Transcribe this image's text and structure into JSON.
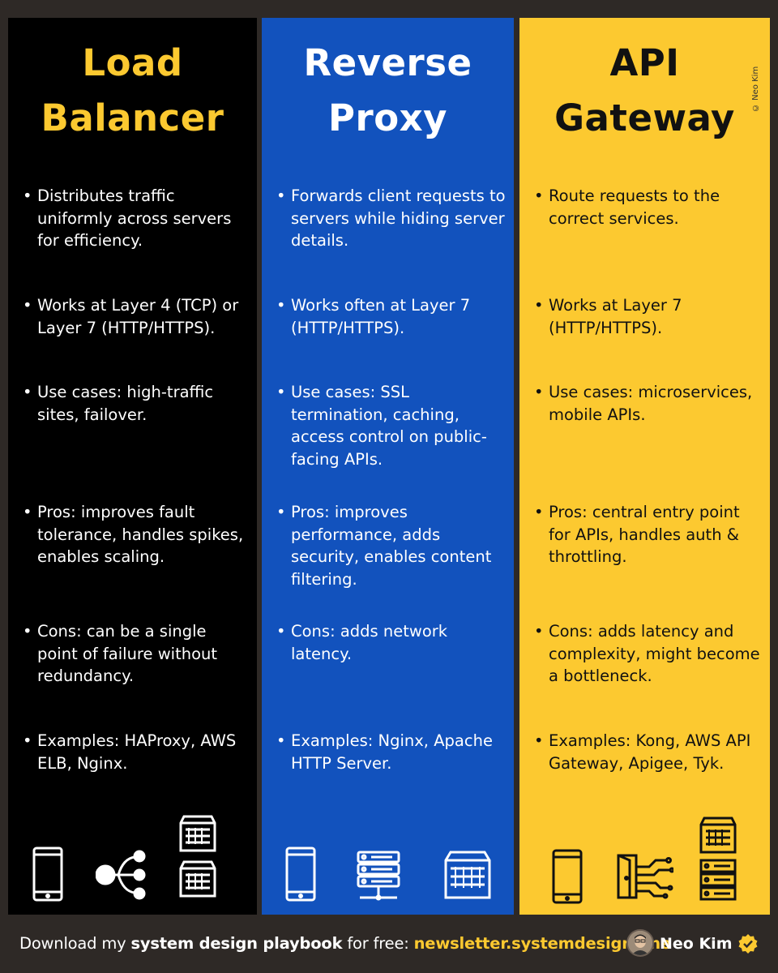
{
  "colors": {
    "background": "#2e2926",
    "load_balancer_bg": "#000000",
    "reverse_proxy_bg": "#1252bd",
    "api_gateway_bg": "#fcc930",
    "accent": "#fcc930"
  },
  "copyright": "© Neo Kim",
  "columns": {
    "load_balancer": {
      "title_line1": "Load",
      "title_line2": "Balancer",
      "bullets": [
        "Distributes traffic uniformly across servers for efficiency.",
        "Works at Layer 4 (TCP) or Layer 7 (HTTP/HTTPS).",
        "Use cases: high-traffic sites, failover.",
        "Pros: improves fault tolerance, handles spikes, enables scaling.",
        "Cons: can be a single point of failure without redundancy.",
        "Examples: HAProxy, AWS ELB, Nginx."
      ],
      "icons": [
        "mobile-phone-icon",
        "load-distribution-icon",
        "server-rack-icon",
        "server-rack-icon"
      ]
    },
    "reverse_proxy": {
      "title_line1": "Reverse",
      "title_line2": "Proxy",
      "bullets": [
        "Forwards client requests to servers while hiding server details.",
        "Works often at Layer 7 (HTTP/HTTPS).",
        "Use cases: SSL termination, caching, access control on public-facing APIs.",
        "Pros: improves performance, adds security, enables content filtering.",
        "Cons: adds network latency.",
        "Examples: Nginx, Apache HTTP Server."
      ],
      "icons": [
        "mobile-phone-icon",
        "network-server-icon",
        "server-rack-icon"
      ]
    },
    "api_gateway": {
      "title_line1": "API",
      "title_line2": "Gateway",
      "bullets": [
        "Route requests to the correct services.",
        "Works at Layer 7 (HTTP/HTTPS).",
        "Use cases: microservices, mobile APIs.",
        "Pros: central entry point for APIs, handles auth & throttling.",
        "Cons: adds latency and complexity, might become a bottleneck.",
        "Examples: Kong, AWS API Gateway, Apigee, Tyk."
      ],
      "icons": [
        "mobile-phone-icon",
        "gateway-door-icon",
        "server-rack-icon",
        "server-stack-icon"
      ]
    }
  },
  "footer": {
    "prefix": "Download my ",
    "bold": "system design playbook",
    "middle": " for free: ",
    "link": "newsletter.systemdesign.one",
    "author": "Neo Kim"
  }
}
